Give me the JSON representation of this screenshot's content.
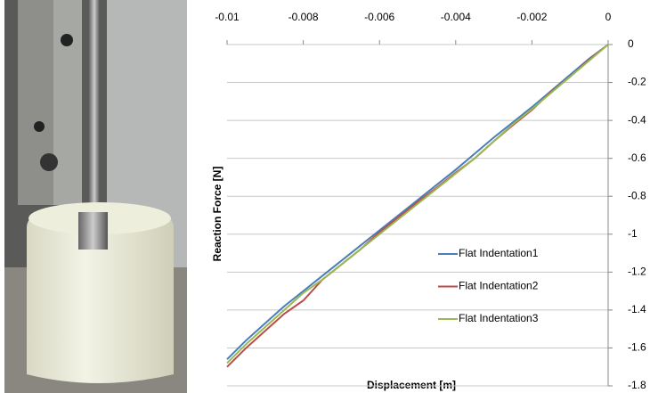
{
  "chart_data": {
    "type": "line",
    "x_label": "Displacement [m]",
    "y_label": "Reaction Force [N]",
    "x": [
      0,
      -0.0005,
      -0.001,
      -0.0015,
      -0.002,
      -0.0025,
      -0.003,
      -0.0035,
      -0.004,
      -0.0045,
      -0.005,
      -0.0055,
      -0.006,
      -0.0065,
      -0.007,
      -0.0075,
      -0.008,
      -0.0085,
      -0.009,
      -0.0095,
      -0.01
    ],
    "series": [
      {
        "name": "Flat Indentation1",
        "color": "#4a7ebb",
        "values": [
          0,
          -0.075,
          -0.16,
          -0.245,
          -0.33,
          -0.41,
          -0.49,
          -0.575,
          -0.66,
          -0.74,
          -0.82,
          -0.9,
          -0.98,
          -1.06,
          -1.14,
          -1.22,
          -1.3,
          -1.38,
          -1.47,
          -1.56,
          -1.66
        ]
      },
      {
        "name": "Flat Indentation2",
        "color": "#be4b48",
        "values": [
          0,
          -0.08,
          -0.17,
          -0.25,
          -0.345,
          -0.425,
          -0.51,
          -0.6,
          -0.675,
          -0.755,
          -0.83,
          -0.91,
          -0.99,
          -1.08,
          -1.16,
          -1.24,
          -1.35,
          -1.42,
          -1.51,
          -1.6,
          -1.7
        ]
      },
      {
        "name": "Flat Indentation3",
        "color": "#98b954",
        "values": [
          0,
          -0.085,
          -0.17,
          -0.255,
          -0.34,
          -0.42,
          -0.51,
          -0.6,
          -0.68,
          -0.76,
          -0.84,
          -0.92,
          -1.0,
          -1.08,
          -1.16,
          -1.24,
          -1.31,
          -1.4,
          -1.49,
          -1.58,
          -1.68
        ]
      }
    ],
    "xlim": [
      -0.01,
      0
    ],
    "xticks": [
      -0.01,
      -0.008,
      -0.006,
      -0.004,
      -0.002,
      0
    ],
    "ylim": [
      -1.8,
      0
    ],
    "yticks": [
      0,
      -0.2,
      -0.4,
      -0.6,
      -0.8,
      -1,
      -1.2,
      -1.4,
      -1.6,
      -1.8
    ],
    "grid": true,
    "legend": "lower-right"
  }
}
